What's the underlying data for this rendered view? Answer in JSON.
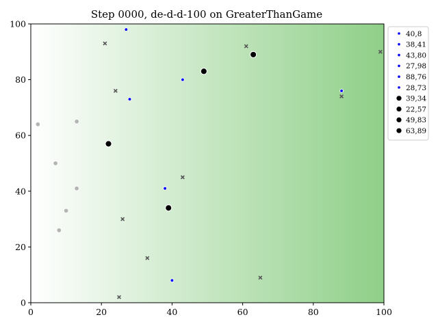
{
  "chart_data": {
    "type": "scatter",
    "title": "Step 0000, de-d-d-100 on GreaterThanGame",
    "xlabel": "",
    "ylabel": "",
    "xlim": [
      0,
      100
    ],
    "ylim": [
      0,
      100
    ],
    "x_ticks": [
      0,
      20,
      40,
      60,
      80,
      100
    ],
    "y_ticks": [
      0,
      20,
      40,
      60,
      80,
      100
    ],
    "grid": false,
    "legend_position": "outside-right",
    "background": {
      "type": "horizontal-gradient",
      "from": "#ffffff",
      "to": "#8fcf88"
    },
    "series": [
      {
        "name": "40,8",
        "marker": "small-dot",
        "color": "#0000ff",
        "points": [
          [
            40,
            8
          ]
        ]
      },
      {
        "name": "38,41",
        "marker": "small-dot",
        "color": "#0000ff",
        "points": [
          [
            38,
            41
          ]
        ]
      },
      {
        "name": "43,80",
        "marker": "small-dot",
        "color": "#0000ff",
        "points": [
          [
            43,
            80
          ]
        ]
      },
      {
        "name": "27,98",
        "marker": "small-dot",
        "color": "#0000ff",
        "points": [
          [
            27,
            98
          ]
        ]
      },
      {
        "name": "88,76",
        "marker": "small-dot",
        "color": "#0000ff",
        "points": [
          [
            88,
            76
          ]
        ]
      },
      {
        "name": "28,73",
        "marker": "small-dot",
        "color": "#0000ff",
        "points": [
          [
            28,
            73
          ]
        ]
      },
      {
        "name": "39,34",
        "marker": "large-dot",
        "color": "#000000",
        "points": [
          [
            39,
            34
          ]
        ]
      },
      {
        "name": "22,57",
        "marker": "large-dot",
        "color": "#000000",
        "points": [
          [
            22,
            57
          ]
        ]
      },
      {
        "name": "49,83",
        "marker": "large-dot",
        "color": "#000000",
        "points": [
          [
            49,
            83
          ]
        ]
      },
      {
        "name": "63,89",
        "marker": "large-dot",
        "color": "#000000",
        "points": [
          [
            63,
            89
          ]
        ]
      }
    ],
    "unlabeled_points": {
      "gray_dots": {
        "color": "#b4b4b4",
        "points": [
          [
            2,
            64
          ],
          [
            7,
            50
          ],
          [
            8,
            26
          ],
          [
            10,
            33
          ],
          [
            13,
            41
          ],
          [
            13,
            65
          ]
        ]
      },
      "x_marks": {
        "color": "#555555",
        "points": [
          [
            21,
            93
          ],
          [
            24,
            76
          ],
          [
            25,
            2
          ],
          [
            26,
            30
          ],
          [
            33,
            16
          ],
          [
            43,
            45
          ],
          [
            61,
            92
          ],
          [
            65,
            9
          ],
          [
            88,
            74
          ],
          [
            99,
            90
          ]
        ]
      }
    }
  }
}
